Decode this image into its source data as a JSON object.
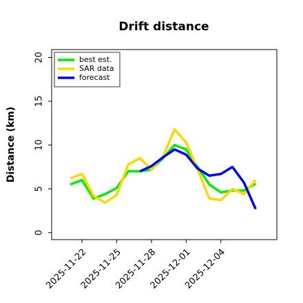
{
  "chart_data": {
    "type": "line",
    "title": "Drift distance",
    "ylabel": "Distance (km)",
    "x": [
      "2025-11-21",
      "2025-11-22",
      "2025-11-23",
      "2025-11-24",
      "2025-11-25",
      "2025-11-26",
      "2025-11-27",
      "2025-11-28",
      "2025-11-29",
      "2025-11-30",
      "2025-12-01",
      "2025-12-02",
      "2025-12-03",
      "2025-12-04",
      "2025-12-05",
      "2025-12-06",
      "2025-12-07"
    ],
    "series": [
      {
        "name": "best est.",
        "color": "#00ee00",
        "values": [
          5.5,
          6.0,
          3.9,
          4.4,
          5.1,
          7.0,
          7.0,
          7.2,
          8.5,
          10.0,
          9.5,
          7.5,
          5.5,
          4.6,
          4.8,
          4.8,
          5.6
        ]
      },
      {
        "name": "SAR data",
        "color": "#ffd700",
        "values": [
          6.2,
          6.7,
          4.2,
          3.4,
          4.3,
          7.8,
          8.5,
          7.2,
          8.7,
          11.8,
          10.3,
          7.2,
          3.9,
          3.7,
          5.0,
          4.4,
          6.0
        ]
      },
      {
        "name": "forecast",
        "color": "#0000ff",
        "values": [
          null,
          null,
          null,
          null,
          null,
          null,
          7.0,
          7.6,
          8.6,
          9.5,
          8.9,
          7.3,
          6.5,
          6.7,
          7.5,
          5.7,
          2.7
        ]
      }
    ],
    "xlim": [
      "2025-11-19T09:00",
      "2025-12-08T20:00"
    ],
    "xticks": [
      "2025-11-22",
      "2025-11-25",
      "2025-11-28",
      "2025-12-01",
      "2025-12-04"
    ],
    "ylim": [
      -0.8,
      20.9
    ],
    "yticks": [
      0,
      5,
      10,
      15,
      20
    ],
    "legend": "upper left"
  }
}
